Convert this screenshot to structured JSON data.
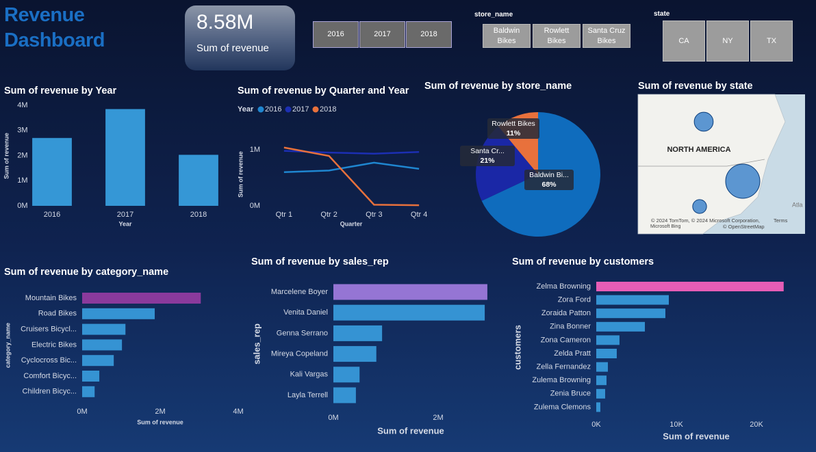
{
  "header": {
    "title": "Revenue Dashboard"
  },
  "card": {
    "value": "8.58M",
    "label": "Sum of revenue"
  },
  "slicers": {
    "year": {
      "items": [
        "2016",
        "2017",
        "2018"
      ]
    },
    "store": {
      "title": "store_name",
      "items": [
        "Baldwin Bikes",
        "Rowlett Bikes",
        "Santa Cruz Bikes"
      ]
    },
    "state": {
      "title": "state",
      "items": [
        "CA",
        "NY",
        "TX"
      ]
    }
  },
  "chart_data": [
    {
      "type": "bar",
      "title": "Sum of revenue by Year",
      "x_label": "Year",
      "y_label": "Sum of revenue",
      "categories": [
        "2016",
        "2017",
        "2018"
      ],
      "values": [
        2700000,
        3850000,
        2030000
      ],
      "color": "#3597d6",
      "ylim": [
        0,
        4000000
      ],
      "yticks": [
        {
          "value": 0,
          "label": "0M"
        },
        {
          "value": 1000000,
          "label": "1M"
        },
        {
          "value": 2000000,
          "label": "2M"
        },
        {
          "value": 3000000,
          "label": "3M"
        },
        {
          "value": 4000000,
          "label": "4M"
        }
      ],
      "grid": false
    },
    {
      "type": "line",
      "title": "Sum of revenue by Quarter and Year",
      "x_label": "Quarter",
      "y_label": "Sum of revenue",
      "legend_title": "Year",
      "categories": [
        "Qtr 1",
        "Qtr 2",
        "Qtr 3",
        "Qtr 4"
      ],
      "series": [
        {
          "name": "2016",
          "color": "#1f86d0",
          "values": [
            600000,
            630000,
            770000,
            660000
          ]
        },
        {
          "name": "2017",
          "color": "#1c2fb3",
          "values": [
            980000,
            950000,
            930000,
            960000
          ]
        },
        {
          "name": "2018",
          "color": "#e8713c",
          "values": [
            1040000,
            890000,
            20000,
            10000
          ]
        }
      ],
      "ylim": [
        0,
        1200000
      ],
      "yticks": [
        {
          "value": 0,
          "label": "0M"
        },
        {
          "value": 1000000,
          "label": "1M"
        }
      ],
      "grid": false
    },
    {
      "type": "pie",
      "title": "Sum of revenue by store_name",
      "categories": [
        "Baldwin Bi...",
        "Santa Cr...",
        "Rowlett Bikes"
      ],
      "values": [
        68,
        21,
        11
      ],
      "value_labels": [
        "68%",
        "21%",
        "11%"
      ],
      "colors": [
        "#0f6cbd",
        "#1a27a6",
        "#e8713c"
      ]
    },
    {
      "type": "map",
      "title": "Sum of revenue by state",
      "values": [
        1790000,
        5830000,
        960000
      ],
      "color": "#1d6fc4",
      "texts": [
        "NORTH AMERICA",
        "Atla",
        "© 2024 TomTom, © 2024 Microsoft Corporation,",
        "Terms",
        "Microsoft Bing",
        "© OpenStreetMap"
      ]
    },
    {
      "type": "hbar",
      "title": "Sum of revenue by category_name",
      "x_label": "Sum of revenue",
      "y_label": "category_name",
      "categories": [
        "Mountain Bikes",
        "Road Bikes",
        "Cruisers Bicycl...",
        "Electric Bikes",
        "Cyclocross Bic...",
        "Comfort Bicyc...",
        "Children Bicyc..."
      ],
      "values": [
        3040000,
        1860000,
        1110000,
        1020000,
        810000,
        440000,
        320000
      ],
      "colors": [
        "#8a3a9c",
        "#3593d3",
        "#3593d3",
        "#3593d3",
        "#3593d3",
        "#3593d3",
        "#3593d3"
      ],
      "xlim": [
        0,
        4000000
      ],
      "xticks": [
        {
          "value": 0,
          "label": "0M"
        },
        {
          "value": 2000000,
          "label": "2M"
        },
        {
          "value": 4000000,
          "label": "4M"
        }
      ]
    },
    {
      "type": "hbar",
      "title": "Sum of revenue by sales_rep",
      "x_label": "Sum of revenue",
      "y_label": "sales_rep",
      "categories": [
        "Marcelene Boyer",
        "Venita Daniel",
        "Genna Serrano",
        "Mireya Copeland",
        "Kali Vargas",
        "Layla Terrell"
      ],
      "values": [
        2940000,
        2890000,
        930000,
        820000,
        500000,
        430000
      ],
      "colors": [
        "#9575d4",
        "#3593d3",
        "#3593d3",
        "#3593d3",
        "#3593d3",
        "#3593d3"
      ],
      "xlim": [
        0,
        3000000
      ],
      "xticks": [
        {
          "value": 0,
          "label": "0M"
        },
        {
          "value": 2000000,
          "label": "2M"
        }
      ]
    },
    {
      "type": "hbar",
      "title": "Sum of revenue by customers",
      "x_label": "Sum of revenue",
      "y_label": "customers",
      "categories": [
        "Zelma Browning",
        "Zora Ford",
        "Zoraida Patton",
        "Zina Bonner",
        "Zona Cameron",
        "Zelda Pratt",
        "Zella Fernandez",
        "Zulema Browning",
        "Zenia Bruce",
        "Zulema Clemons"
      ],
      "values": [
        23400,
        9060,
        8630,
        6070,
        2900,
        2560,
        1450,
        1280,
        1110,
        510
      ],
      "colors": [
        "#e65db6",
        "#3593d3",
        "#3593d3",
        "#3593d3",
        "#3593d3",
        "#3593d3",
        "#3593d3",
        "#3593d3",
        "#3593d3",
        "#3593d3"
      ],
      "xlim": [
        0,
        25000
      ],
      "xticks": [
        {
          "value": 0,
          "label": "0K"
        },
        {
          "value": 10000,
          "label": "10K"
        },
        {
          "value": 20000,
          "label": "20K"
        }
      ]
    }
  ]
}
